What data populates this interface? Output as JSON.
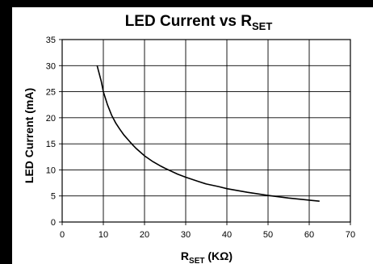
{
  "chart_data": {
    "type": "line",
    "title_main": "LED Current vs R",
    "title_sub": "SET",
    "xlabel_main": "R",
    "xlabel_sub": "SET",
    "xlabel_unit": " (KΩ)",
    "ylabel": "LED Current (mA)",
    "xlim": [
      0,
      70
    ],
    "ylim": [
      0,
      35
    ],
    "xticks": [
      "0",
      "10",
      "20",
      "30",
      "40",
      "50",
      "60",
      "70"
    ],
    "yticks": [
      "0",
      "5",
      "10",
      "15",
      "20",
      "25",
      "30",
      "35"
    ],
    "grid": true,
    "series": [
      {
        "x": [
          8.5,
          9.5,
          10,
          11,
          12,
          13,
          14,
          15,
          16,
          17,
          18,
          19,
          20,
          22,
          24,
          25,
          28,
          30,
          33,
          35,
          38,
          40,
          45,
          50,
          55,
          60,
          62.5
        ],
        "y": [
          30,
          27,
          25,
          22.5,
          20.5,
          19,
          17.8,
          16.7,
          15.8,
          14.9,
          14.1,
          13.4,
          12.7,
          11.6,
          10.7,
          10.3,
          9.2,
          8.6,
          7.8,
          7.3,
          6.8,
          6.4,
          5.7,
          5.1,
          4.6,
          4.2,
          4.0
        ],
        "color": "#000000"
      }
    ]
  },
  "colors": {
    "background": "#ffffff",
    "left_band": "#000000",
    "top_band": "#000000",
    "grid": "#000000",
    "curve": "#000000"
  }
}
